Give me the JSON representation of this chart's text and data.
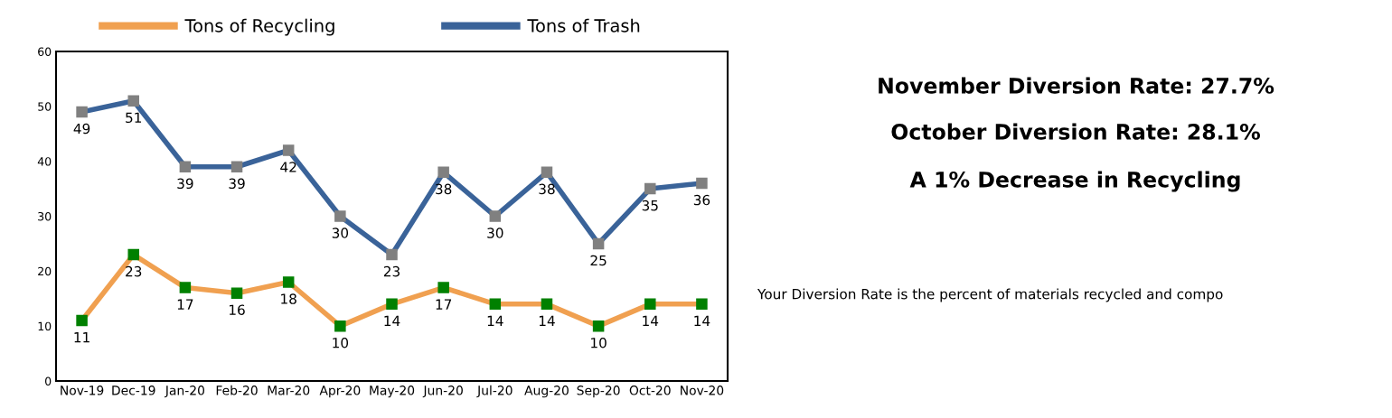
{
  "chart_data": {
    "type": "line",
    "categories": [
      "Nov-19",
      "Dec-19",
      "Jan-20",
      "Feb-20",
      "Mar-20",
      "Apr-20",
      "May-20",
      "Jun-20",
      "Jul-20",
      "Aug-20",
      "Sep-20",
      "Oct-20",
      "Nov-20"
    ],
    "series": [
      {
        "name": "Tons of Recycling",
        "color": "#f0a050",
        "colors": [
          "#008000",
          "#008000",
          "#008000",
          "#008000",
          "#008000",
          "#008000",
          "#008000",
          "#008000",
          "#008000",
          "#008000",
          "#008000",
          "#008000",
          "#008000"
        ],
        "values": [
          11,
          23,
          17,
          16,
          18,
          10,
          14,
          17,
          14,
          14,
          10,
          14,
          14
        ]
      },
      {
        "name": "Tons of Trash",
        "color": "#3a6399",
        "colors": [
          "#808080",
          "#808080",
          "#808080",
          "#808080",
          "#808080",
          "#808080",
          "#808080",
          "#808080",
          "#808080",
          "#808080",
          "#808080",
          "#808080",
          "#808080"
        ],
        "values": [
          49,
          51,
          39,
          39,
          42,
          30,
          23,
          38,
          30,
          38,
          25,
          35,
          36
        ]
      }
    ],
    "ylim": [
      0,
      60
    ],
    "yticks": [
      0,
      10,
      20,
      30,
      40,
      50,
      60
    ],
    "marker": "square",
    "line_style": "solid",
    "grid": false,
    "legend": "top",
    "data_labels": true,
    "annotations": [
      "November Diversion Rate: 27.7%",
      "October Diversion Rate: 28.1%",
      "A 1% Decrease in Recycling",
      "Your Diversion Rate is the percent of materials recycled and compo"
    ]
  }
}
